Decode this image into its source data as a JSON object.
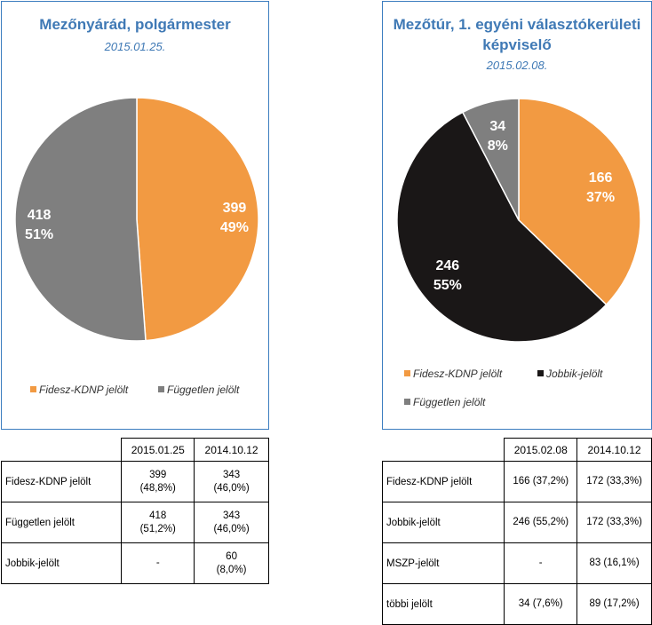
{
  "chart_data": [
    {
      "type": "pie",
      "title": "Mezőnyárád, polgármester",
      "subtitle": "2015.01.25.",
      "categories": [
        "Fidesz-KDNP jelölt",
        "Független jelölt"
      ],
      "values": [
        399,
        418
      ],
      "percent_labels": [
        "49%",
        "51%"
      ],
      "colors": [
        "#f29a42",
        "#7f7f7f"
      ],
      "label_colors": [
        "#ffffff",
        "#ffffff"
      ],
      "legend": [
        "Fidesz-KDNP jelölt",
        "Független jelölt"
      ],
      "legend_position": "bottom"
    },
    {
      "type": "pie",
      "title": "Mezőtúr, 1. egyéni választókerületi képviselő",
      "subtitle": "2015.02.08.",
      "categories": [
        "Fidesz-KDNP jelölt",
        "Jobbik-jelölt",
        "Független jelölt"
      ],
      "values": [
        166,
        246,
        34
      ],
      "percent_labels": [
        "37%",
        "55%",
        "8%"
      ],
      "colors": [
        "#f29a42",
        "#1a1717",
        "#7f7f7f"
      ],
      "label_colors": [
        "#ffffff",
        "#ffffff",
        "#ffffff"
      ],
      "legend": [
        "Fidesz-KDNP jelölt",
        "Jobbik-jelölt",
        "Független jelölt"
      ],
      "legend_position": "bottom"
    },
    {
      "type": "table",
      "columns": [
        "2015.01.25",
        "2014.10.12"
      ],
      "rows": [
        {
          "label": "Fidesz-KDNP jelölt",
          "cells": [
            [
              "399",
              "(48,8%)"
            ],
            [
              "343",
              "(46,0%)"
            ]
          ]
        },
        {
          "label": "Független jelölt",
          "cells": [
            [
              "418",
              "(51,2%)"
            ],
            [
              "343",
              "(46,0%)"
            ]
          ]
        },
        {
          "label": "Jobbik-jelölt",
          "cells": [
            [
              "-",
              ""
            ],
            [
              "60",
              "(8,0%)"
            ]
          ]
        }
      ]
    },
    {
      "type": "table",
      "columns": [
        "2015.02.08",
        "2014.10.12"
      ],
      "rows": [
        {
          "label": "Fidesz-KDNP jelölt",
          "cells": [
            [
              "166 (37,2%)"
            ],
            [
              "172 (33,3%)"
            ]
          ]
        },
        {
          "label": "Jobbik-jelölt",
          "cells": [
            [
              "246 (55,2%)"
            ],
            [
              "172 (33,3%)"
            ]
          ]
        },
        {
          "label": "MSZP-jelölt",
          "cells": [
            [
              "-"
            ],
            [
              "83 (16,1%)"
            ]
          ]
        },
        {
          "label": "többi jelölt",
          "cells": [
            [
              "34 (7,6%)"
            ],
            [
              "89 (17,2%)"
            ]
          ]
        }
      ]
    }
  ]
}
